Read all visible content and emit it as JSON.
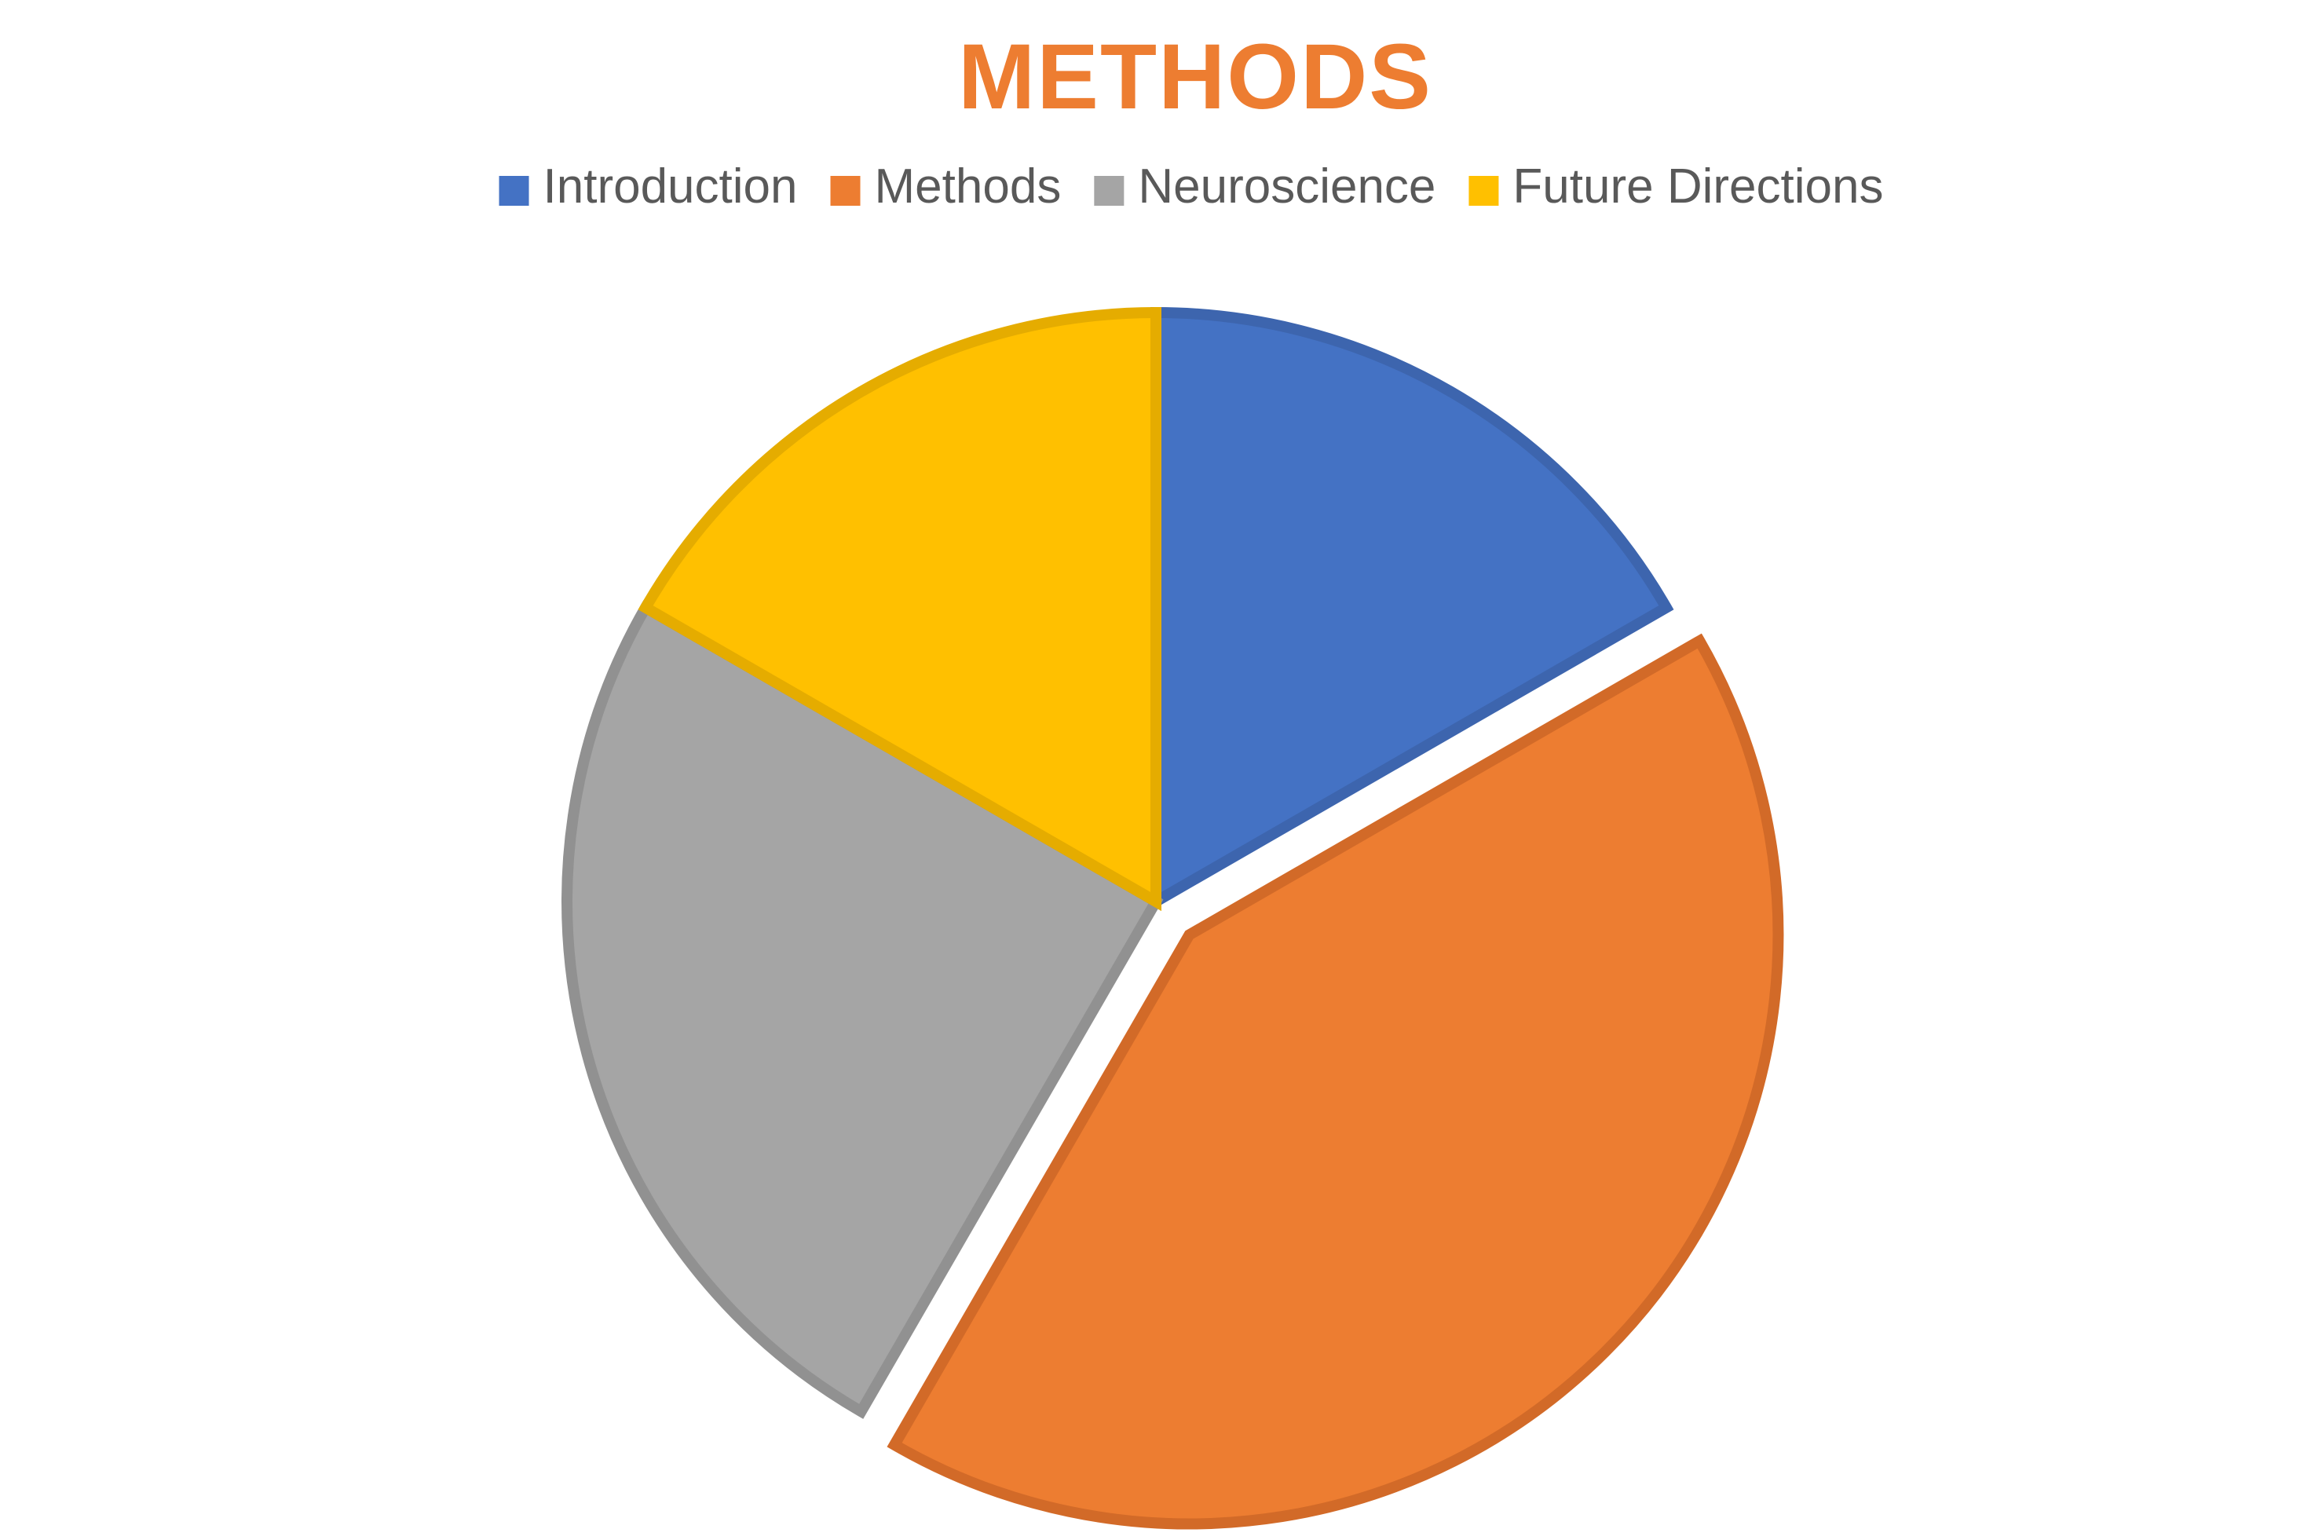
{
  "chart_data": {
    "type": "pie",
    "title": "METHODS",
    "title_color": "#ED7D31",
    "legend_position": "top",
    "legend_text_color": "#595959",
    "categories": [
      "Introduction",
      "Methods",
      "Neuroscience",
      "Future Directions"
    ],
    "values": [
      16.7,
      41.7,
      25.0,
      16.7
    ],
    "colors": [
      "#4472C4",
      "#ED7D31",
      "#A5A5A5",
      "#FFC000"
    ],
    "border_colors": [
      "#3D65AE",
      "#D26A28",
      "#919191",
      "#E5AC00"
    ],
    "exploded": [
      false,
      true,
      false,
      false
    ],
    "start_angle_deg": 0,
    "direction": "clockwise"
  }
}
